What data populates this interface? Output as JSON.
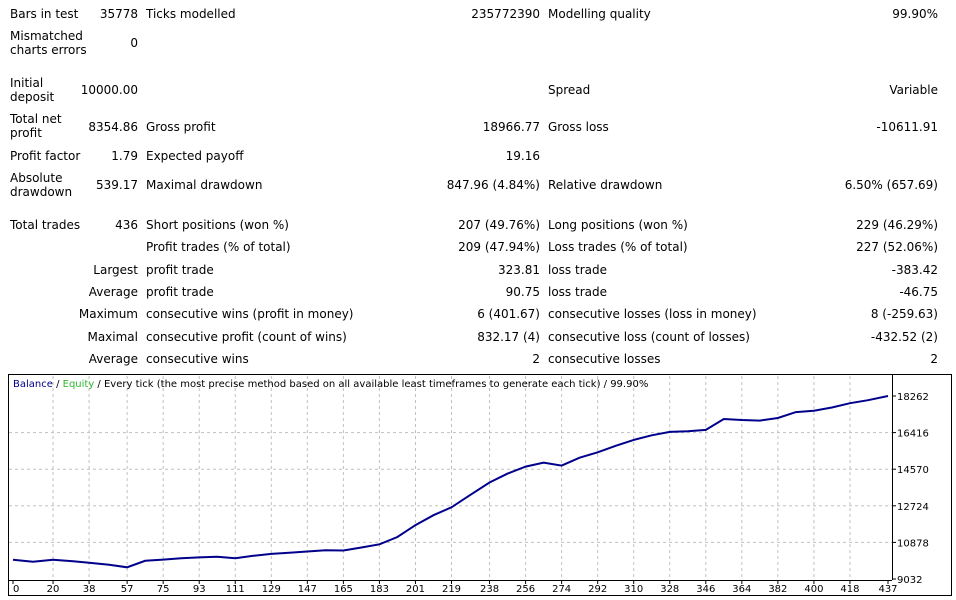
{
  "report": {
    "bars_in_test_label": "Bars in test",
    "bars_in_test": "35778",
    "ticks_modelled_label": "Ticks modelled",
    "ticks_modelled": "235772390",
    "modelling_quality_label": "Modelling quality",
    "modelling_quality": "99.90%",
    "mismatched_label": "Mismatched charts errors",
    "mismatched": "0",
    "initial_deposit_label": "Initial deposit",
    "initial_deposit": "10000.00",
    "spread_label": "Spread",
    "spread": "Variable",
    "total_net_profit_label": "Total net profit",
    "total_net_profit": "8354.86",
    "gross_profit_label": "Gross profit",
    "gross_profit": "18966.77",
    "gross_loss_label": "Gross loss",
    "gross_loss": "-10611.91",
    "profit_factor_label": "Profit factor",
    "profit_factor": "1.79",
    "expected_payoff_label": "Expected payoff",
    "expected_payoff": "19.16",
    "absolute_drawdown_label": "Absolute drawdown",
    "absolute_drawdown": "539.17",
    "maximal_drawdown_label": "Maximal drawdown",
    "maximal_drawdown": "847.96 (4.84%)",
    "relative_drawdown_label": "Relative drawdown",
    "relative_drawdown": "6.50% (657.69)",
    "total_trades_label": "Total trades",
    "total_trades": "436",
    "short_positions_label": "Short positions (won %)",
    "short_positions": "207 (49.76%)",
    "long_positions_label": "Long positions (won %)",
    "long_positions": "229 (46.29%)",
    "profit_trades_label": "Profit trades (% of total)",
    "profit_trades": "209 (47.94%)",
    "loss_trades_label": "Loss trades (% of total)",
    "loss_trades": "227 (52.06%)",
    "largest_label": "Largest",
    "largest_profit_label": "profit trade",
    "largest_profit": "323.81",
    "largest_loss_label": "loss trade",
    "largest_loss": "-383.42",
    "average_label": "Average",
    "average_profit_label": "profit trade",
    "average_profit": "90.75",
    "average_loss_label": "loss trade",
    "average_loss": "-46.75",
    "maximum_label": "Maximum",
    "max_cons_wins_label": "consecutive wins (profit in money)",
    "max_cons_wins": "6 (401.67)",
    "max_cons_losses_label": "consecutive losses (loss in money)",
    "max_cons_losses": "8 (-259.63)",
    "maximal_label": "Maximal",
    "maximal_cons_profit_label": "consecutive profit (count of wins)",
    "maximal_cons_profit": "832.17 (4)",
    "maximal_cons_loss_label": "consecutive loss (count of losses)",
    "maximal_cons_loss": "-432.52 (2)",
    "average2_label": "Average",
    "avg_cons_wins_label": "consecutive wins",
    "avg_cons_wins": "2",
    "avg_cons_losses_label": "consecutive losses",
    "avg_cons_losses": "2"
  },
  "colors": {
    "balance": "#00008b",
    "equity": "#2eb82e",
    "grid": "#c0c0c0"
  },
  "chart_data": {
    "type": "line",
    "legend": {
      "balance": "Balance",
      "equity": "Equity",
      "rest": " / Every tick (the most precise method based on all available least timeframes to generate each tick) / 99.90%",
      "sep": " / "
    },
    "x_ticks": [
      "0",
      "20",
      "38",
      "57",
      "75",
      "93",
      "111",
      "129",
      "147",
      "165",
      "183",
      "201",
      "219",
      "238",
      "256",
      "274",
      "292",
      "310",
      "328",
      "346",
      "364",
      "382",
      "400",
      "418",
      "437"
    ],
    "y_ticks": [
      "18262",
      "16416",
      "14570",
      "12724",
      "10878",
      "9032"
    ],
    "ylim": [
      9032,
      18262
    ],
    "xlim": [
      0,
      437
    ],
    "series": [
      {
        "name": "Balance",
        "x": [
          0,
          10,
          20,
          30,
          38,
          48,
          57,
          66,
          75,
          84,
          93,
          102,
          111,
          120,
          129,
          138,
          147,
          156,
          165,
          174,
          183,
          192,
          201,
          210,
          219,
          228,
          238,
          247,
          256,
          265,
          274,
          283,
          292,
          301,
          310,
          319,
          328,
          337,
          346,
          355,
          364,
          373,
          382,
          391,
          400,
          409,
          418,
          427,
          437
        ],
        "values": [
          10000,
          9900,
          10000,
          9930,
          9850,
          9750,
          9620,
          9950,
          10010,
          10080,
          10120,
          10150,
          10080,
          10200,
          10300,
          10360,
          10420,
          10480,
          10470,
          10620,
          10780,
          11150,
          11750,
          12250,
          12650,
          13250,
          13900,
          14350,
          14700,
          14900,
          14750,
          15150,
          15420,
          15750,
          16050,
          16280,
          16450,
          16480,
          16550,
          17100,
          17050,
          17020,
          17150,
          17450,
          17520,
          17680,
          17900,
          18050,
          18262
        ]
      }
    ]
  }
}
